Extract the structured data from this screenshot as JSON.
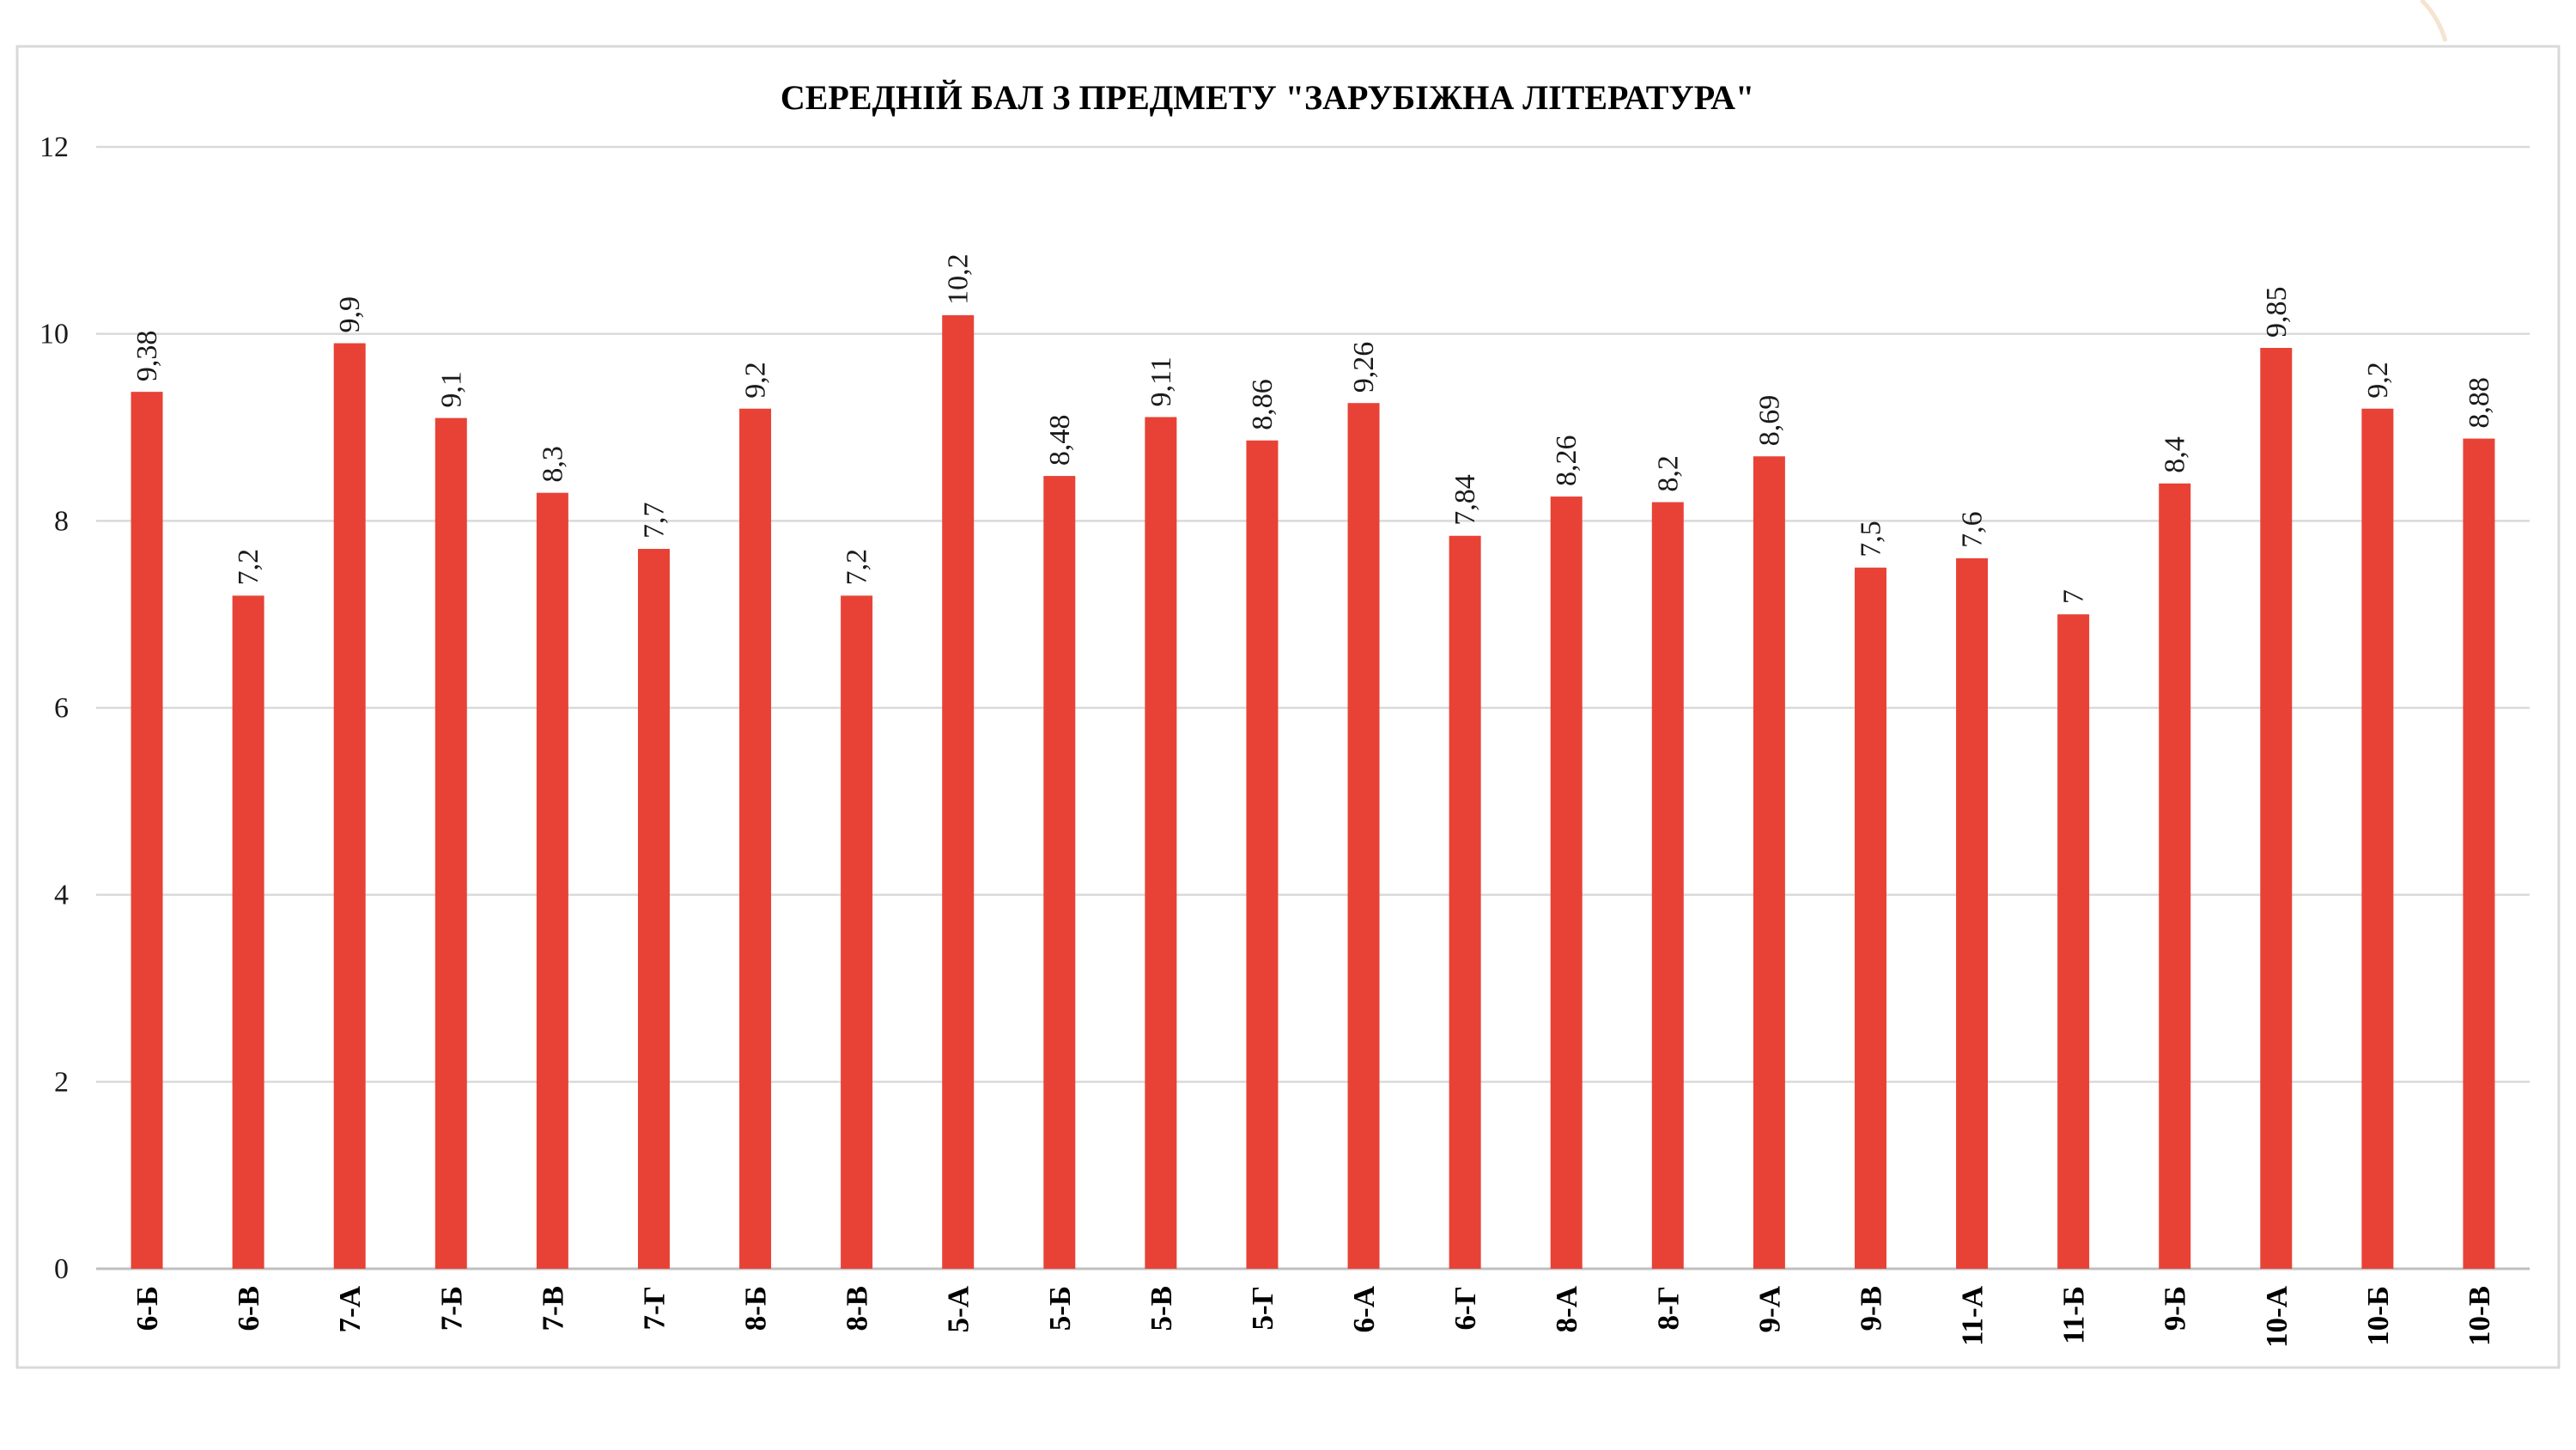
{
  "chart_data": {
    "type": "bar",
    "title": "СЕРЕДНІЙ БАЛ З ПРЕДМЕТУ \"ЗАРУБІЖНА ЛІТЕРАТУРА\"",
    "xlabel": "",
    "ylabel": "",
    "ylim": [
      0,
      12
    ],
    "y_ticks": [
      0,
      2,
      4,
      6,
      8,
      10,
      12
    ],
    "y_tick_labels": [
      "0",
      "2",
      "4",
      "6",
      "8",
      "10",
      "12"
    ],
    "grid": true,
    "legend": "none",
    "bar_color": "#E84236",
    "categories": [
      "6-Б",
      "6-В",
      "7-А",
      "7-Б",
      "7-В",
      "7-Г",
      "8-Б",
      "8-В",
      "5-А",
      "5-Б",
      "5-В",
      "5-Г",
      "6-А",
      "6-Г",
      "8-А",
      "8-Г",
      "9-А",
      "9-В",
      "11-А",
      "11-Б",
      "9-Б",
      "10-А",
      "10-Б",
      "10-В"
    ],
    "values": [
      9.38,
      7.2,
      9.9,
      9.1,
      8.3,
      7.7,
      9.2,
      7.2,
      10.2,
      8.48,
      9.11,
      8.86,
      9.26,
      7.84,
      8.26,
      8.2,
      8.69,
      7.5,
      7.6,
      7,
      8.4,
      9.85,
      9.2,
      8.88
    ],
    "data_labels": [
      "9,38",
      "7,2",
      "9,9",
      "9,1",
      "8,3",
      "7,7",
      "9,2",
      "7,2",
      "10,2",
      "8,48",
      "9,11",
      "8,86",
      "9,26",
      "7,84",
      "8,26",
      "8,2",
      "8,69",
      "7,5",
      "7,6",
      "7",
      "8,4",
      "9,85",
      "9,2",
      "8,88"
    ]
  }
}
